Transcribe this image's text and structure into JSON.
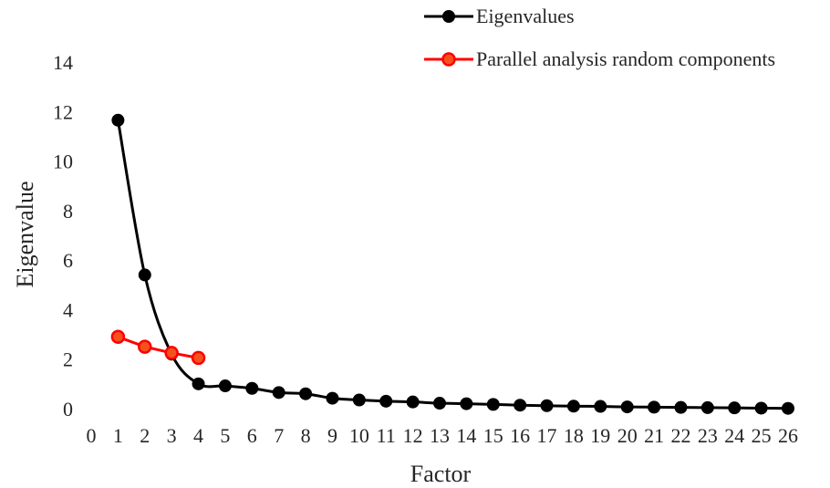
{
  "chart_data": {
    "type": "line",
    "xlabel": "Factor",
    "ylabel": "Eigenvalue",
    "xlim": [
      0,
      26
    ],
    "ylim": [
      0,
      14
    ],
    "x_ticks": [
      "0",
      "1",
      "2",
      "3",
      "4",
      "5",
      "6",
      "7",
      "8",
      "9",
      "10",
      "11",
      "12",
      "13",
      "14",
      "15",
      "16",
      "17",
      "18",
      "19",
      "20",
      "21",
      "22",
      "23",
      "24",
      "25",
      "26"
    ],
    "y_ticks": [
      "0",
      "2",
      "4",
      "6",
      "8",
      "10",
      "12",
      "14"
    ],
    "grid": false,
    "legend": "top-right",
    "series": [
      {
        "name": "Eigenvalues",
        "color": "#000000",
        "marker_fill": "#000000",
        "smooth": true,
        "x": [
          1,
          2,
          3,
          4,
          5,
          6,
          7,
          8,
          9,
          10,
          11,
          12,
          13,
          14,
          15,
          16,
          17,
          18,
          19,
          20,
          21,
          22,
          23,
          24,
          25,
          26
        ],
        "values": [
          11.65,
          5.4,
          2.2,
          1.0,
          0.92,
          0.82,
          0.65,
          0.6,
          0.42,
          0.35,
          0.3,
          0.27,
          0.22,
          0.2,
          0.17,
          0.14,
          0.12,
          0.1,
          0.09,
          0.07,
          0.06,
          0.05,
          0.04,
          0.03,
          0.02,
          0.01
        ]
      },
      {
        "name": "Parallel analysis random components",
        "color": "#ff0000",
        "marker_fill": "#f4511e",
        "smooth": false,
        "x": [
          1,
          2,
          3,
          4
        ],
        "values": [
          2.9,
          2.5,
          2.25,
          2.05
        ]
      }
    ]
  }
}
